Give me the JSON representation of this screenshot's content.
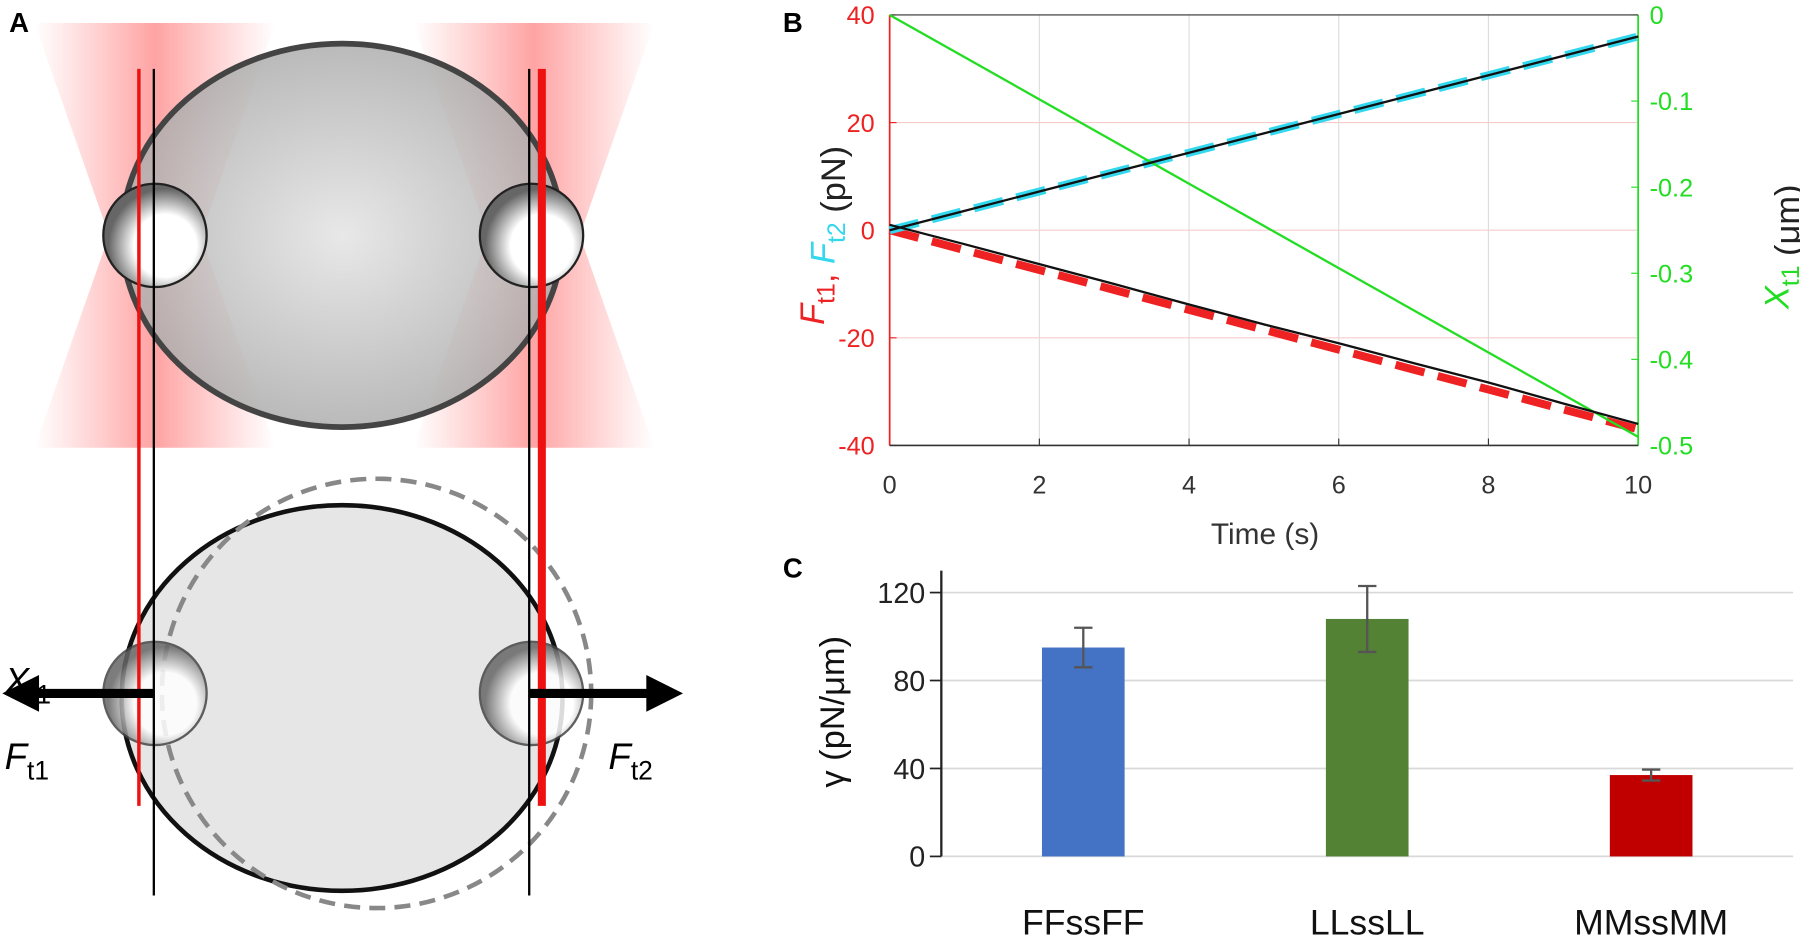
{
  "diagram": {
    "label": "A",
    "arrow_labels": [
      {
        "text": "X",
        "sub": "t1"
      },
      {
        "text": "F",
        "sub": "t1"
      },
      {
        "text": "F",
        "sub": "t2"
      }
    ]
  },
  "chart_data": [
    {
      "type": "line",
      "label": "B",
      "x": [
        0,
        1,
        2,
        3,
        4,
        5,
        6,
        7,
        8,
        9,
        10
      ],
      "series": [
        {
          "color": "#ee2222",
          "dashed": true,
          "values": [
            0,
            -3.7,
            -7.4,
            -11.1,
            -14.8,
            -18.5,
            -22.2,
            -25.9,
            -29.6,
            -33.3,
            -37
          ]
        },
        {
          "color": "#111111",
          "dashed": false,
          "values": [
            1,
            -2.6,
            -6.3,
            -10,
            -13.8,
            -17.5,
            -21,
            -24.7,
            -28.3,
            -32.2,
            -36
          ]
        },
        {
          "color": "#33d8ee",
          "dashed": true,
          "values": [
            0,
            3.6,
            7.2,
            10.8,
            14.4,
            18,
            21.6,
            25.2,
            28.8,
            32.4,
            36
          ]
        },
        {
          "color": "#111111",
          "dashed": false,
          "values": [
            0,
            3.6,
            7.2,
            10.8,
            14.4,
            18,
            21.6,
            25.2,
            28.8,
            32.4,
            36
          ]
        },
        {
          "color": "#22dd22",
          "dashed": false,
          "axis": "y2",
          "values": [
            0,
            -0.049,
            -0.098,
            -0.147,
            -0.196,
            -0.245,
            -0.294,
            -0.343,
            -0.392,
            -0.441,
            -0.49
          ]
        }
      ],
      "xlim": [
        0,
        10
      ],
      "xticks": [
        0,
        2,
        4,
        6,
        8,
        10
      ],
      "ylim": [
        -40,
        40
      ],
      "yticks": [
        -40,
        -20,
        0,
        20,
        40
      ],
      "y2lim": [
        -0.5,
        0
      ],
      "y2ticks": [
        0,
        -0.1,
        -0.2,
        -0.3,
        -0.4,
        -0.5
      ],
      "xlabel": "Time (s)",
      "ylabel": [
        {
          "text": "F",
          "sub": "t1",
          "color": "#ee2222"
        },
        {
          "text": ", ",
          "color": "#ee2222"
        },
        {
          "text": "F",
          "sub": "t2",
          "color": "#33d8ee"
        },
        {
          "text": " (pN)",
          "color": "#222222"
        }
      ],
      "y2label": [
        {
          "text": "X",
          "sub": "t1",
          "color": "#22dd22"
        },
        {
          "text": " (μm)",
          "color": "#222222"
        }
      ],
      "ytick_color": "#ee2222",
      "y2tick_color": "#22dd22",
      "grid": true
    },
    {
      "type": "bar",
      "label": "C",
      "categories": [
        "FFssFF",
        "LLssLL",
        "MMssMM"
      ],
      "values": [
        95,
        108,
        37
      ],
      "errors": [
        9,
        15,
        2.5
      ],
      "colors": [
        "#4472c4",
        "#548235",
        "#c00000"
      ],
      "ylim": [
        0,
        130
      ],
      "yticks": [
        0,
        40,
        80,
        120
      ],
      "ylabel": "γ (pN/μm)",
      "grid": true
    }
  ]
}
